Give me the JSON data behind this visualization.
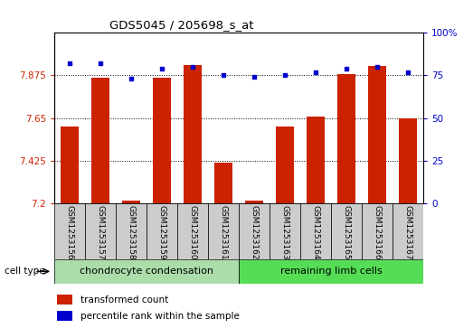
{
  "title": "GDS5045 / 205698_s_at",
  "samples": [
    "GSM1253156",
    "GSM1253157",
    "GSM1253158",
    "GSM1253159",
    "GSM1253160",
    "GSM1253161",
    "GSM1253162",
    "GSM1253163",
    "GSM1253164",
    "GSM1253165",
    "GSM1253166",
    "GSM1253167"
  ],
  "transformed_count": [
    7.605,
    7.865,
    7.215,
    7.865,
    7.93,
    7.415,
    7.215,
    7.605,
    7.66,
    7.88,
    7.925,
    7.65
  ],
  "percentile_rank": [
    82,
    82,
    73,
    79,
    80,
    75,
    74,
    75,
    77,
    79,
    80,
    77
  ],
  "group1_indices": [
    0,
    1,
    2,
    3,
    4,
    5
  ],
  "group2_indices": [
    6,
    7,
    8,
    9,
    10,
    11
  ],
  "group1_label": "chondrocyte condensation",
  "group2_label": "remaining limb cells",
  "cell_type_label": "cell type",
  "y_min": 7.2,
  "y_max": 8.1,
  "y_ticks": [
    7.2,
    7.425,
    7.65,
    7.875
  ],
  "y_tick_labels": [
    "7.2",
    "7.425",
    "7.65",
    "7.875"
  ],
  "right_y_ticks": [
    0,
    25,
    50,
    75,
    100
  ],
  "right_y_tick_labels": [
    "0",
    "25",
    "50",
    "75",
    "100%"
  ],
  "bar_color": "#cc2200",
  "scatter_color": "#0000cc",
  "group1_bg": "#aaddaa",
  "group2_bg": "#55dd55",
  "sample_bg": "#cccccc",
  "legend_bar_label": "transformed count",
  "legend_scatter_label": "percentile rank within the sample"
}
